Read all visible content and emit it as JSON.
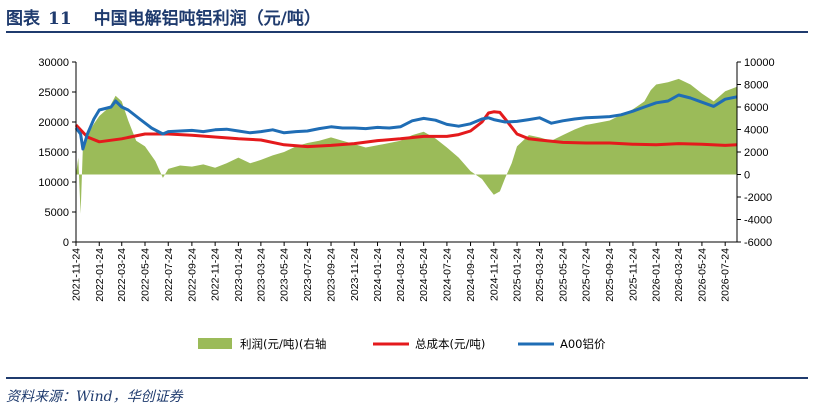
{
  "header": {
    "label": "图表",
    "number": "11",
    "title": "中国电解铝吨铝利润（元/吨）"
  },
  "source": "资料来源：Wind，华创证券",
  "colors": {
    "profit": "#9bbb59",
    "cost": "#e41a1c",
    "price": "#1f6db5",
    "navy": "#1f3b6e"
  },
  "chart_data": {
    "type": "line",
    "y_left": {
      "min": 0,
      "max": 30000,
      "ticks": [
        0,
        5000,
        10000,
        15000,
        20000,
        25000,
        30000
      ]
    },
    "y_right": {
      "min": -6000,
      "max": 10000,
      "ticks": [
        -6000,
        -4000,
        -2000,
        0,
        2000,
        4000,
        6000,
        8000,
        10000
      ]
    },
    "x_range": [
      "2021-11-24",
      "2026-08-24"
    ],
    "x_ticks": [
      "2021-11-24",
      "2022-01-24",
      "2022-03-24",
      "2022-05-24",
      "2022-07-24",
      "2022-09-24",
      "2022-11-24",
      "2023-01-24",
      "2023-03-24",
      "2023-05-24",
      "2023-07-24",
      "2023-09-24",
      "2023-11-24",
      "2024-01-24",
      "2024-03-24",
      "2024-05-24",
      "2024-07-24",
      "2024-09-24",
      "2024-11-24",
      "2025-01-24",
      "2025-03-24",
      "2025-05-24",
      "2025-07-24",
      "2025-09-24",
      "2025-11-24",
      "2026-01-24",
      "2026-03-24",
      "2026-05-24",
      "2026-07-24"
    ],
    "legend": [
      "利润(元/吨)(右轴",
      "总成本(元/吨)",
      "A00铝价"
    ],
    "series": [
      {
        "name": "利润(元/吨)(右轴",
        "axis": "right",
        "kind": "area",
        "points": [
          [
            "2021-11-24",
            0
          ],
          [
            "2021-11-30",
            1500
          ],
          [
            "2021-12-06",
            -3500
          ],
          [
            "2021-12-12",
            2500
          ],
          [
            "2021-12-24",
            3500
          ],
          [
            "2022-01-10",
            4500
          ],
          [
            "2022-01-24",
            5200
          ],
          [
            "2022-02-20",
            6000
          ],
          [
            "2022-03-08",
            7000
          ],
          [
            "2022-03-24",
            6500
          ],
          [
            "2022-04-10",
            4800
          ],
          [
            "2022-05-01",
            3000
          ],
          [
            "2022-05-24",
            2500
          ],
          [
            "2022-06-20",
            1200
          ],
          [
            "2022-07-10",
            -300
          ],
          [
            "2022-07-24",
            500
          ],
          [
            "2022-08-24",
            800
          ],
          [
            "2022-09-24",
            700
          ],
          [
            "2022-10-24",
            900
          ],
          [
            "2022-11-24",
            600
          ],
          [
            "2022-12-24",
            1000
          ],
          [
            "2023-01-24",
            1500
          ],
          [
            "2023-02-24",
            1000
          ],
          [
            "2023-03-24",
            1300
          ],
          [
            "2023-04-24",
            1700
          ],
          [
            "2023-05-24",
            2000
          ],
          [
            "2023-06-24",
            2500
          ],
          [
            "2023-07-24",
            2800
          ],
          [
            "2023-08-24",
            3000
          ],
          [
            "2023-09-24",
            3300
          ],
          [
            "2023-10-24",
            3000
          ],
          [
            "2023-11-24",
            2700
          ],
          [
            "2023-12-24",
            2400
          ],
          [
            "2024-01-24",
            2600
          ],
          [
            "2024-02-24",
            2800
          ],
          [
            "2024-03-24",
            3000
          ],
          [
            "2024-04-24",
            3500
          ],
          [
            "2024-05-24",
            3800
          ],
          [
            "2024-06-24",
            3200
          ],
          [
            "2024-07-24",
            2400
          ],
          [
            "2024-08-24",
            1500
          ],
          [
            "2024-09-24",
            300
          ],
          [
            "2024-10-24",
            -400
          ],
          [
            "2024-11-10",
            -1200
          ],
          [
            "2024-11-24",
            -1800
          ],
          [
            "2024-12-10",
            -1500
          ],
          [
            "2024-12-24",
            -300
          ],
          [
            "2025-01-10",
            1000
          ],
          [
            "2025-01-24",
            2500
          ],
          [
            "2025-02-24",
            3500
          ],
          [
            "2025-03-24",
            3300
          ],
          [
            "2025-04-24",
            3000
          ],
          [
            "2025-05-24",
            3500
          ],
          [
            "2025-06-24",
            4000
          ],
          [
            "2025-07-24",
            4400
          ],
          [
            "2025-08-24",
            4600
          ],
          [
            "2025-09-24",
            4800
          ],
          [
            "2025-10-24",
            5300
          ],
          [
            "2025-11-24",
            5800
          ],
          [
            "2025-12-24",
            6500
          ],
          [
            "2026-01-10",
            7500
          ],
          [
            "2026-01-24",
            8000
          ],
          [
            "2026-02-24",
            8200
          ],
          [
            "2026-03-24",
            8500
          ],
          [
            "2026-04-24",
            8000
          ],
          [
            "2026-05-24",
            7200
          ],
          [
            "2026-06-24",
            6500
          ],
          [
            "2026-07-24",
            7400
          ],
          [
            "2026-08-24",
            7800
          ]
        ]
      },
      {
        "name": "总成本(元/吨)",
        "axis": "left",
        "kind": "line",
        "points": [
          [
            "2021-11-24",
            19500
          ],
          [
            "2021-12-24",
            17500
          ],
          [
            "2022-01-24",
            16700
          ],
          [
            "2022-03-24",
            17200
          ],
          [
            "2022-05-24",
            18000
          ],
          [
            "2022-07-24",
            18000
          ],
          [
            "2022-09-24",
            17800
          ],
          [
            "2022-11-24",
            17500
          ],
          [
            "2023-01-24",
            17200
          ],
          [
            "2023-03-24",
            17000
          ],
          [
            "2023-05-24",
            16200
          ],
          [
            "2023-07-24",
            15900
          ],
          [
            "2023-09-24",
            16100
          ],
          [
            "2023-11-24",
            16400
          ],
          [
            "2024-01-24",
            16900
          ],
          [
            "2024-03-24",
            17200
          ],
          [
            "2024-05-24",
            17600
          ],
          [
            "2024-07-24",
            17600
          ],
          [
            "2024-08-24",
            17900
          ],
          [
            "2024-09-24",
            18500
          ],
          [
            "2024-10-24",
            20000
          ],
          [
            "2024-11-10",
            21500
          ],
          [
            "2024-11-24",
            21700
          ],
          [
            "2024-12-10",
            21600
          ],
          [
            "2024-12-24",
            20500
          ],
          [
            "2025-01-24",
            18000
          ],
          [
            "2025-02-24",
            17200
          ],
          [
            "2025-03-24",
            17000
          ],
          [
            "2025-05-24",
            16600
          ],
          [
            "2025-07-24",
            16500
          ],
          [
            "2025-09-24",
            16500
          ],
          [
            "2025-11-24",
            16300
          ],
          [
            "2026-01-24",
            16200
          ],
          [
            "2026-03-24",
            16400
          ],
          [
            "2026-05-24",
            16300
          ],
          [
            "2026-07-24",
            16100
          ],
          [
            "2026-08-24",
            16200
          ]
        ]
      },
      {
        "name": "A00铝价",
        "axis": "left",
        "kind": "line",
        "points": [
          [
            "2021-11-24",
            19000
          ],
          [
            "2021-12-06",
            18000
          ],
          [
            "2021-12-12",
            15500
          ],
          [
            "2021-12-24",
            18000
          ],
          [
            "2022-01-10",
            20500
          ],
          [
            "2022-01-24",
            22000
          ],
          [
            "2022-02-24",
            22500
          ],
          [
            "2022-03-08",
            23500
          ],
          [
            "2022-03-24",
            22500
          ],
          [
            "2022-04-10",
            22000
          ],
          [
            "2022-05-10",
            20500
          ],
          [
            "2022-06-10",
            19000
          ],
          [
            "2022-07-10",
            18000
          ],
          [
            "2022-07-24",
            18400
          ],
          [
            "2022-08-24",
            18500
          ],
          [
            "2022-09-24",
            18600
          ],
          [
            "2022-10-24",
            18400
          ],
          [
            "2022-11-24",
            18700
          ],
          [
            "2022-12-24",
            18800
          ],
          [
            "2023-01-24",
            18500
          ],
          [
            "2023-02-24",
            18200
          ],
          [
            "2023-03-24",
            18400
          ],
          [
            "2023-04-24",
            18700
          ],
          [
            "2023-05-24",
            18200
          ],
          [
            "2023-06-24",
            18400
          ],
          [
            "2023-07-24",
            18500
          ],
          [
            "2023-08-24",
            18900
          ],
          [
            "2023-09-24",
            19200
          ],
          [
            "2023-10-24",
            19000
          ],
          [
            "2023-11-24",
            19000
          ],
          [
            "2023-12-24",
            18900
          ],
          [
            "2024-01-24",
            19100
          ],
          [
            "2024-02-24",
            19000
          ],
          [
            "2024-03-24",
            19200
          ],
          [
            "2024-04-24",
            20200
          ],
          [
            "2024-05-24",
            20600
          ],
          [
            "2024-06-24",
            20300
          ],
          [
            "2024-07-24",
            19600
          ],
          [
            "2024-08-24",
            19300
          ],
          [
            "2024-09-24",
            19700
          ],
          [
            "2024-10-24",
            20500
          ],
          [
            "2024-11-10",
            20700
          ],
          [
            "2024-11-24",
            20400
          ],
          [
            "2024-12-24",
            20000
          ],
          [
            "2025-01-24",
            20100
          ],
          [
            "2025-02-24",
            20400
          ],
          [
            "2025-03-24",
            20700
          ],
          [
            "2025-04-24",
            19800
          ],
          [
            "2025-05-24",
            20200
          ],
          [
            "2025-06-24",
            20500
          ],
          [
            "2025-07-24",
            20700
          ],
          [
            "2025-08-24",
            20800
          ],
          [
            "2025-09-24",
            20900
          ],
          [
            "2025-10-24",
            21200
          ],
          [
            "2025-11-24",
            21800
          ],
          [
            "2025-12-24",
            22500
          ],
          [
            "2026-01-24",
            23200
          ],
          [
            "2026-02-24",
            23500
          ],
          [
            "2026-03-24",
            24500
          ],
          [
            "2026-04-24",
            24000
          ],
          [
            "2026-05-24",
            23300
          ],
          [
            "2026-06-24",
            22600
          ],
          [
            "2026-07-24",
            23800
          ],
          [
            "2026-08-24",
            24200
          ]
        ]
      }
    ]
  }
}
